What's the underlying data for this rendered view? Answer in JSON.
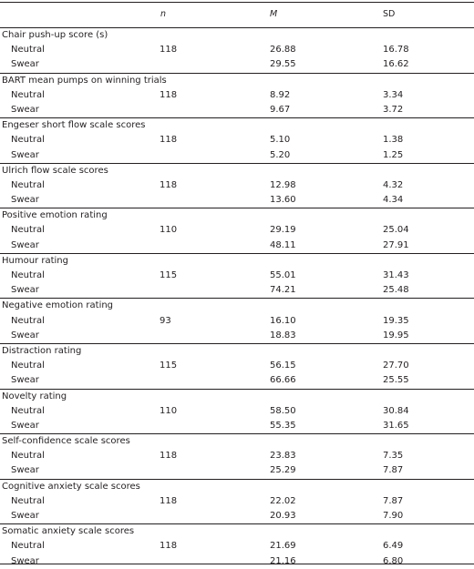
{
  "header": {
    "n": "n",
    "m": "M",
    "sd": "SD"
  },
  "groups": [
    {
      "title": "Chair push-up score (s)",
      "rows": [
        {
          "label": "Neutral",
          "n": "118",
          "m": "26.88",
          "sd": "16.78"
        },
        {
          "label": "Swear",
          "n": "",
          "m": "29.55",
          "sd": "16.62"
        }
      ]
    },
    {
      "title": "BART mean pumps on winning trials",
      "rows": [
        {
          "label": "Neutral",
          "n": "118",
          "m": "8.92",
          "sd": "3.34"
        },
        {
          "label": "Swear",
          "n": "",
          "m": "9.67",
          "sd": "3.72"
        }
      ]
    },
    {
      "title": "Engeser short flow scale scores",
      "rows": [
        {
          "label": "Neutral",
          "n": "118",
          "m": "5.10",
          "sd": "1.38"
        },
        {
          "label": "Swear",
          "n": "",
          "m": "5.20",
          "sd": "1.25"
        }
      ]
    },
    {
      "title": "Ulrich flow scale scores",
      "rows": [
        {
          "label": "Neutral",
          "n": "118",
          "m": "12.98",
          "sd": "4.32"
        },
        {
          "label": "Swear",
          "n": "",
          "m": "13.60",
          "sd": "4.34"
        }
      ]
    },
    {
      "title": "Positive emotion rating",
      "rows": [
        {
          "label": "Neutral",
          "n": "110",
          "m": "29.19",
          "sd": "25.04"
        },
        {
          "label": "Swear",
          "n": "",
          "m": "48.11",
          "sd": "27.91"
        }
      ]
    },
    {
      "title": "Humour rating",
      "rows": [
        {
          "label": "Neutral",
          "n": "115",
          "m": "55.01",
          "sd": "31.43"
        },
        {
          "label": "Swear",
          "n": "",
          "m": "74.21",
          "sd": "25.48"
        }
      ]
    },
    {
      "title": "Negative emotion rating",
      "rows": [
        {
          "label": "Neutral",
          "n": "93",
          "m": "16.10",
          "sd": "19.35"
        },
        {
          "label": "Swear",
          "n": "",
          "m": "18.83",
          "sd": "19.95"
        }
      ]
    },
    {
      "title": "Distraction rating",
      "rows": [
        {
          "label": "Neutral",
          "n": "115",
          "m": "56.15",
          "sd": "27.70"
        },
        {
          "label": "Swear",
          "n": "",
          "m": "66.66",
          "sd": "25.55"
        }
      ]
    },
    {
      "title": "Novelty rating",
      "rows": [
        {
          "label": "Neutral",
          "n": "110",
          "m": "58.50",
          "sd": "30.84"
        },
        {
          "label": "Swear",
          "n": "",
          "m": "55.35",
          "sd": "31.65"
        }
      ]
    },
    {
      "title": "Self-confidence scale scores",
      "rows": [
        {
          "label": "Neutral",
          "n": "118",
          "m": "23.83",
          "sd": "7.35"
        },
        {
          "label": "Swear",
          "n": "",
          "m": "25.29",
          "sd": "7.87"
        }
      ]
    },
    {
      "title": "Cognitive anxiety scale scores",
      "rows": [
        {
          "label": "Neutral",
          "n": "118",
          "m": "22.02",
          "sd": "7.87"
        },
        {
          "label": "Swear",
          "n": "",
          "m": "20.93",
          "sd": "7.90"
        }
      ]
    },
    {
      "title": "Somatic anxiety scale scores",
      "rows": [
        {
          "label": "Neutral",
          "n": "118",
          "m": "21.69",
          "sd": "6.49"
        },
        {
          "label": "Swear",
          "n": "",
          "m": "21.16",
          "sd": "6.80"
        }
      ]
    }
  ]
}
